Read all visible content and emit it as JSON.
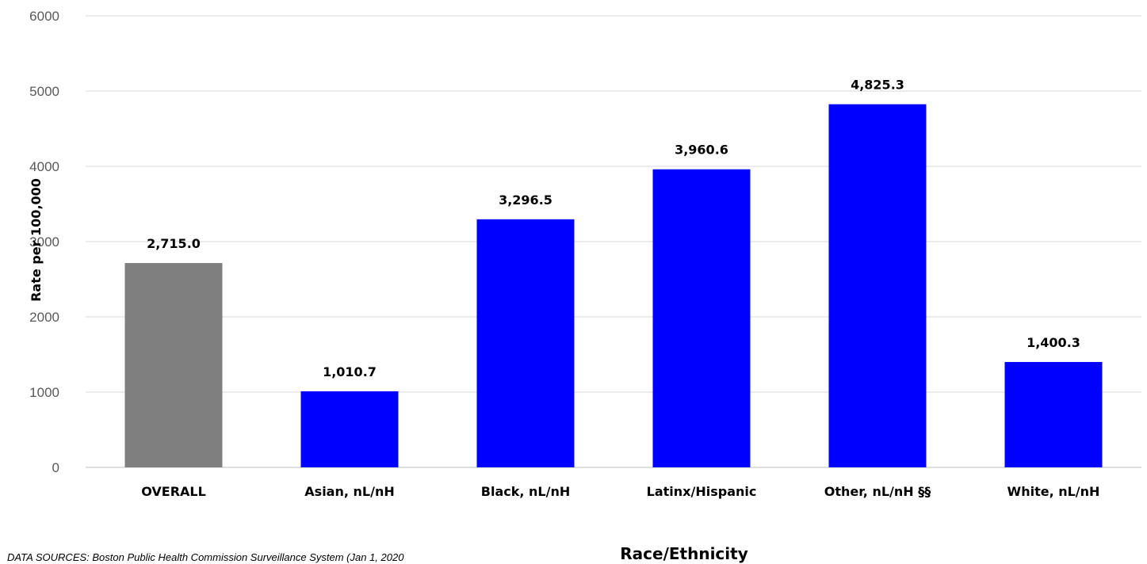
{
  "chart_data": {
    "type": "bar",
    "categories": [
      "OVERALL",
      "Asian, nL/nH",
      "Black, nL/nH",
      "Latinx/Hispanic",
      "Other, nL/nH §§",
      "White, nL/nH"
    ],
    "values": [
      2715.0,
      1010.7,
      3296.5,
      3960.6,
      4825.3,
      1400.3
    ],
    "data_labels": [
      "2,715.0",
      "1,010.7",
      "3,296.5",
      "3,960.6",
      "4,825.3",
      "1,400.3"
    ],
    "bar_colors": [
      "#7f7f7f",
      "#0000ff",
      "#0000ff",
      "#0000ff",
      "#0000ff",
      "#0000ff"
    ],
    "title": "",
    "xlabel": "Race/Ethnicity",
    "ylabel": "Rate per 100,000",
    "ylim": [
      0,
      6000
    ],
    "yticks": [
      0,
      1000,
      2000,
      3000,
      4000,
      5000,
      6000
    ],
    "grid": true,
    "legend": "none"
  },
  "source_note": "DATA SOURCES: Boston Public Health Commission Surveillance System (Jan 1, 2020"
}
